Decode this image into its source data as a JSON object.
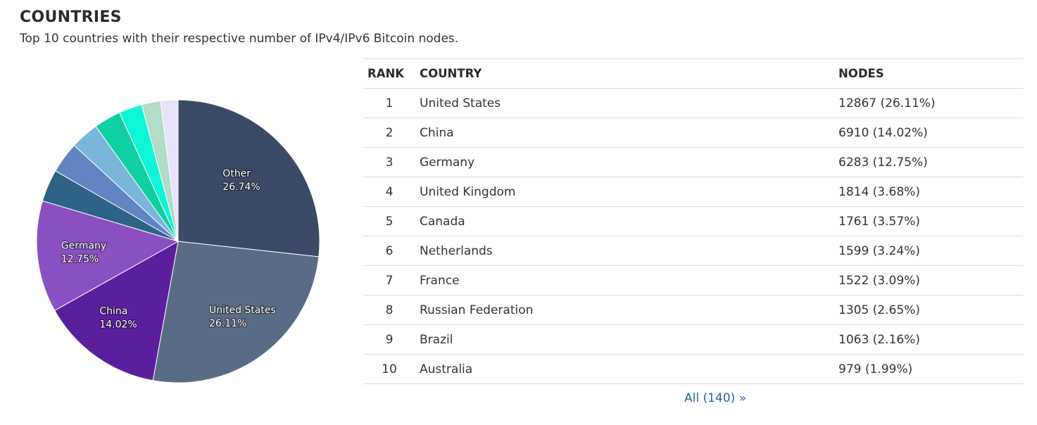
{
  "title": "COUNTRIES",
  "subtitle": "Top 10 countries with their respective number of IPv4/IPv6 Bitcoin nodes.",
  "table": {
    "headers": {
      "rank": "RANK",
      "country": "COUNTRY",
      "nodes": "NODES"
    },
    "rows": [
      {
        "rank": "1",
        "country": "United States",
        "nodes": "12867 (26.11%)"
      },
      {
        "rank": "2",
        "country": "China",
        "nodes": "6910 (14.02%)"
      },
      {
        "rank": "3",
        "country": "Germany",
        "nodes": "6283 (12.75%)"
      },
      {
        "rank": "4",
        "country": "United Kingdom",
        "nodes": "1814 (3.68%)"
      },
      {
        "rank": "5",
        "country": "Canada",
        "nodes": "1761 (3.57%)"
      },
      {
        "rank": "6",
        "country": "Netherlands",
        "nodes": "1599 (3.24%)"
      },
      {
        "rank": "7",
        "country": "France",
        "nodes": "1522 (3.09%)"
      },
      {
        "rank": "8",
        "country": "Russian Federation",
        "nodes": "1305 (2.65%)"
      },
      {
        "rank": "9",
        "country": "Brazil",
        "nodes": "1063 (2.16%)"
      },
      {
        "rank": "10",
        "country": "Australia",
        "nodes": "979 (1.99%)"
      }
    ]
  },
  "all_link": {
    "label": "All (140)",
    "icon": "double-chevron-right-icon",
    "color": "#2a6496"
  },
  "chart_data": {
    "type": "pie",
    "slices": [
      {
        "label": "Other",
        "value": 26.74,
        "percent_label": "26.74%",
        "color": "#3b4a66",
        "show_label": true
      },
      {
        "label": "United States",
        "value": 26.11,
        "percent_label": "26.11%",
        "color": "#5a6b85",
        "show_label": true
      },
      {
        "label": "China",
        "value": 14.02,
        "percent_label": "14.02%",
        "color": "#5b1f9e",
        "show_label": true
      },
      {
        "label": "Germany",
        "value": 12.75,
        "percent_label": "12.75%",
        "color": "#8a50c2",
        "show_label": true
      },
      {
        "label": "United Kingdom",
        "value": 3.68,
        "color": "#2e6387",
        "show_label": false
      },
      {
        "label": "Canada",
        "value": 3.57,
        "color": "#5f85c2",
        "show_label": false
      },
      {
        "label": "Netherlands",
        "value": 3.24,
        "color": "#7ab5da",
        "show_label": false
      },
      {
        "label": "France",
        "value": 3.09,
        "color": "#0fcfa3",
        "show_label": false
      },
      {
        "label": "Russian Federation",
        "value": 2.65,
        "color": "#0ff5d8",
        "show_label": false
      },
      {
        "label": "Brazil",
        "value": 2.16,
        "color": "#b0dcc8",
        "show_label": false
      },
      {
        "label": "Australia",
        "value": 1.99,
        "color": "#e6e3fb",
        "show_label": false
      }
    ],
    "start": "top",
    "direction": "clockwise"
  }
}
